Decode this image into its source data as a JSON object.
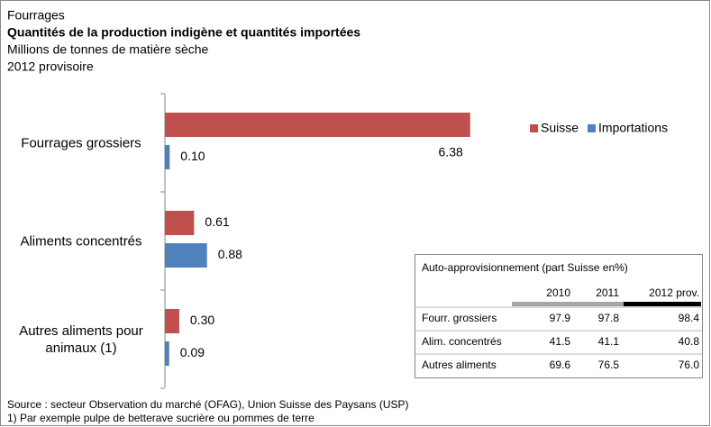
{
  "header": {
    "lines": [
      "Fourrages",
      "Quantités de la production indigène et quantités importées",
      "Millions de tonnes de matière sèche",
      "2012 provisoire"
    ]
  },
  "chart_data": {
    "type": "bar",
    "orientation": "horizontal",
    "categories": [
      "Fourrages grossiers",
      "Aliments concentrés",
      "Autres aliments pour animaux (1)"
    ],
    "series": [
      {
        "name": "Suisse",
        "color": "#c0504d",
        "values": [
          6.38,
          0.61,
          0.3
        ],
        "value_labels": [
          "6.38",
          "0.61",
          "0.30"
        ]
      },
      {
        "name": "Importations",
        "color": "#4f81bd",
        "values": [
          0.1,
          0.88,
          0.09
        ],
        "value_labels": [
          "0.10",
          "0.88",
          "0.09"
        ]
      }
    ],
    "legend": "top-right"
  },
  "table": {
    "title": "Auto-approvisionnement (part Suisse en%)",
    "columns": [
      "2010",
      "2011",
      "2012 prov."
    ],
    "rows": [
      [
        "Fourr. grossiers",
        "97.9",
        "97.8",
        "98.4"
      ],
      [
        "Alim. concentrés",
        "41.5",
        "41.1",
        "40.8"
      ],
      [
        "Autres aliments",
        "69.6",
        "76.5",
        "76.0"
      ]
    ]
  },
  "footer": {
    "lines": [
      "Source : secteur Observation du marché (OFAG), Union Suisse des Paysans (USP)",
      "1) Par exemple pulpe de betterave sucrière ou pommes de terre"
    ]
  }
}
